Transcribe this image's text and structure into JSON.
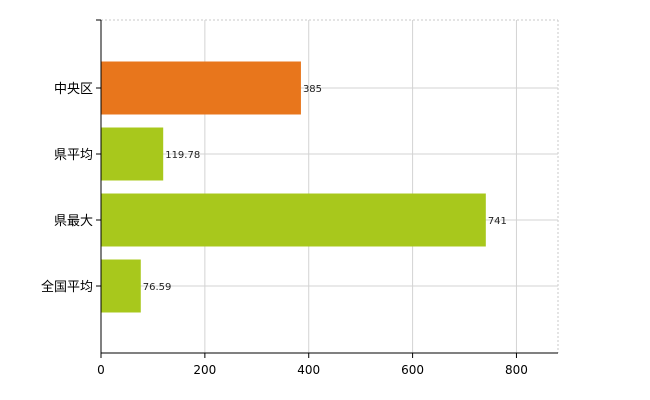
{
  "chart_data": {
    "type": "bar",
    "orientation": "horizontal",
    "categories": [
      "中央区",
      "県平均",
      "県最大",
      "全国平均"
    ],
    "values": [
      385,
      119.78,
      741,
      76.59
    ],
    "value_labels": [
      "385",
      "119.78",
      "741",
      "76.59"
    ],
    "bar_colors": [
      "#e8761c",
      "#a8c81c",
      "#a8c81c",
      "#a8c81c"
    ],
    "xlim": [
      0,
      880
    ],
    "xticks": [
      0,
      200,
      400,
      600,
      800
    ],
    "grid": true,
    "title": "",
    "xlabel": "",
    "ylabel": ""
  }
}
